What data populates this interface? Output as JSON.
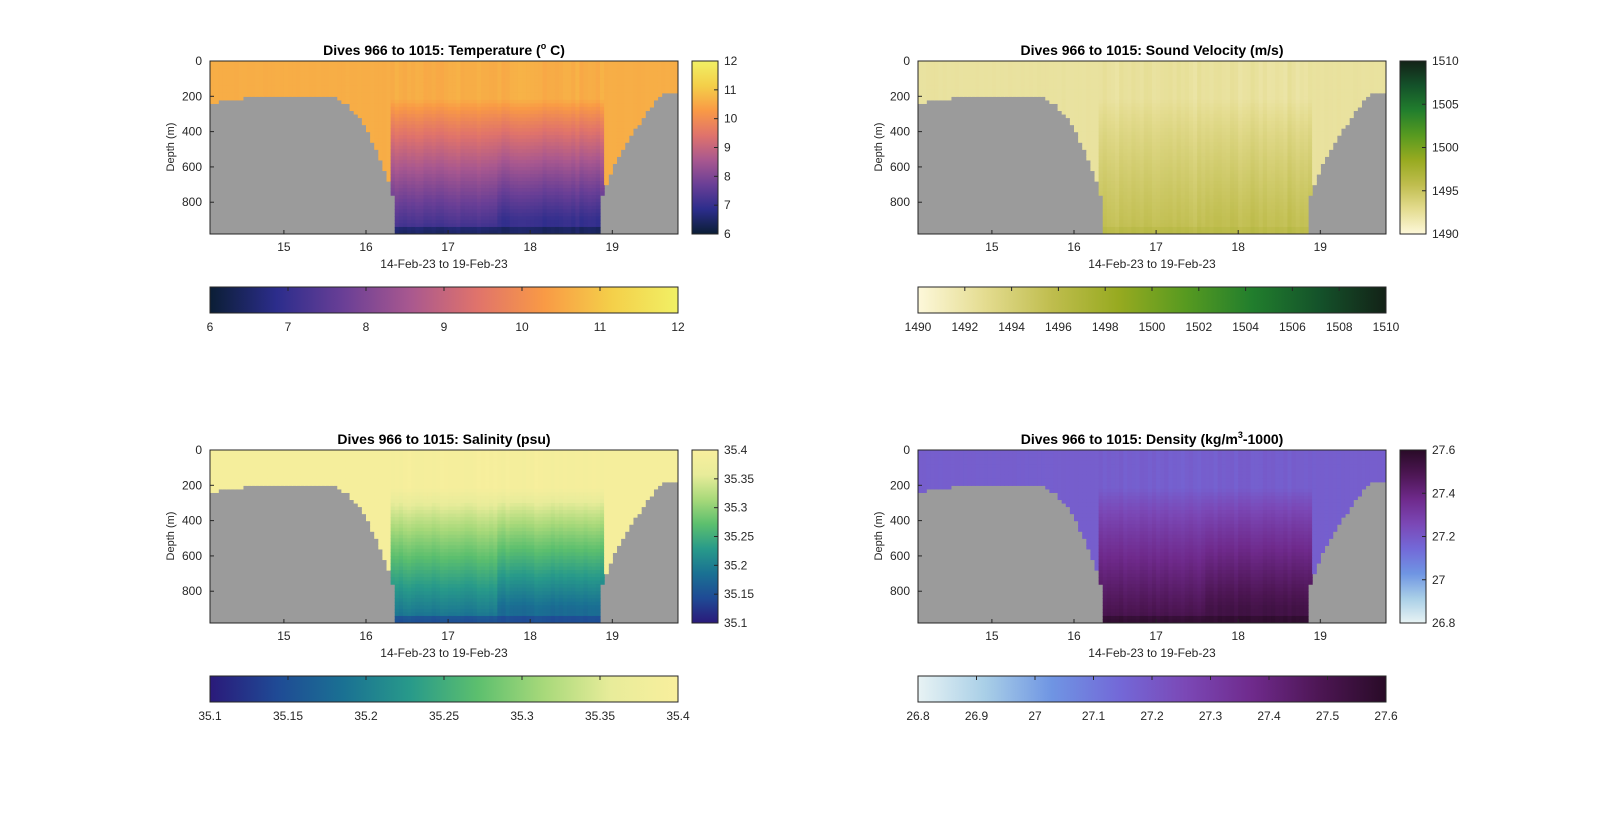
{
  "figure": {
    "xlabel_text": "14-Feb-23 to 19-Feb-23",
    "ylabel_text": "Depth (m)"
  },
  "colors": {
    "bathymetry": "#9b9b9b",
    "axis": "#262626"
  },
  "chart_data": [
    {
      "type": "heatmap",
      "id": "temperature",
      "title": "Dives 966 to 1015: Temperature (",
      "title_sup": "o",
      "title_tail": " C)",
      "xlabel": "14-Feb-23 to 19-Feb-23",
      "ylabel": "Depth (m)",
      "xlim": [
        14.1,
        19.8
      ],
      "ylim": [
        0,
        980
      ],
      "x_ticks": [
        15,
        16,
        17,
        18,
        19
      ],
      "y_ticks": [
        0,
        200,
        400,
        600,
        800
      ],
      "x_tick_labels": [
        "15",
        "16",
        "17",
        "18",
        "19"
      ],
      "y_tick_labels": [
        "0",
        "200",
        "400",
        "600",
        "800"
      ],
      "clim": [
        6,
        12
      ],
      "side_colorbar_ticks": [
        "6",
        "7",
        "8",
        "9",
        "10",
        "11",
        "12"
      ],
      "bottom_colorbar_ticks": [
        "6",
        "7",
        "8",
        "9",
        "10",
        "11",
        "12"
      ],
      "colormap": [
        "#0b1e35",
        "#2c2d8c",
        "#6a3f96",
        "#a9588f",
        "#e0736b",
        "#f99a45",
        "#f4cf49",
        "#f1f065"
      ],
      "surface_value": 10.6,
      "deep_value": 7.0
    },
    {
      "type": "heatmap",
      "id": "sound_velocity",
      "title": "Dives 966 to 1015: Sound Velocity (m/s)",
      "title_sup": "",
      "title_tail": "",
      "xlabel": "14-Feb-23 to 19-Feb-23",
      "ylabel": "Depth (m)",
      "xlim": [
        14.1,
        19.8
      ],
      "ylim": [
        0,
        980
      ],
      "x_ticks": [
        15,
        16,
        17,
        18,
        19
      ],
      "y_ticks": [
        0,
        200,
        400,
        600,
        800
      ],
      "x_tick_labels": [
        "15",
        "16",
        "17",
        "18",
        "19"
      ],
      "y_tick_labels": [
        "0",
        "200",
        "400",
        "600",
        "800"
      ],
      "clim": [
        1490,
        1510
      ],
      "side_colorbar_ticks": [
        "1490",
        "1495",
        "1500",
        "1505",
        "1510"
      ],
      "bottom_colorbar_ticks": [
        "1490",
        "1492",
        "1494",
        "1496",
        "1498",
        "1500",
        "1502",
        "1504",
        "1506",
        "1508",
        "1510"
      ],
      "colormap": [
        "#fdf8da",
        "#e4dc90",
        "#bfbd4e",
        "#97aa20",
        "#579a20",
        "#217e2d",
        "#14522a",
        "#132217"
      ],
      "surface_value": 1492.3,
      "deep_value": 1495.5
    },
    {
      "type": "heatmap",
      "id": "salinity",
      "title": "Dives 966 to 1015: Salinity (psu)",
      "title_sup": "",
      "title_tail": "",
      "xlabel": "14-Feb-23 to 19-Feb-23",
      "ylabel": "Depth (m)",
      "xlim": [
        14.1,
        19.8
      ],
      "ylim": [
        0,
        980
      ],
      "x_ticks": [
        15,
        16,
        17,
        18,
        19
      ],
      "y_ticks": [
        0,
        200,
        400,
        600,
        800
      ],
      "x_tick_labels": [
        "15",
        "16",
        "17",
        "18",
        "19"
      ],
      "y_tick_labels": [
        "0",
        "200",
        "400",
        "600",
        "800"
      ],
      "clim": [
        35.1,
        35.4
      ],
      "side_colorbar_ticks": [
        "35.1",
        "35.15",
        "35.2",
        "35.25",
        "35.3",
        "35.35",
        "35.4"
      ],
      "bottom_colorbar_ticks": [
        "35.1",
        "35.15",
        "35.2",
        "35.25",
        "35.3",
        "35.35",
        "35.4"
      ],
      "colormap": [
        "#2a1a7a",
        "#1f4a95",
        "#1a7193",
        "#289a8a",
        "#5cbf6e",
        "#a8d97a",
        "#e8ec9a",
        "#f9ef9d"
      ],
      "surface_value": 35.39,
      "deep_value": 35.18
    },
    {
      "type": "heatmap",
      "id": "density",
      "title": "Dives 966 to 1015: Density (kg/m",
      "title_sup": "3",
      "title_tail": "-1000)",
      "xlabel": "14-Feb-23 to 19-Feb-23",
      "ylabel": "Depth (m)",
      "xlim": [
        14.1,
        19.8
      ],
      "ylim": [
        0,
        980
      ],
      "x_ticks": [
        15,
        16,
        17,
        18,
        19
      ],
      "y_ticks": [
        0,
        200,
        400,
        600,
        800
      ],
      "x_tick_labels": [
        "15",
        "16",
        "17",
        "18",
        "19"
      ],
      "y_tick_labels": [
        "0",
        "200",
        "400",
        "600",
        "800"
      ],
      "clim": [
        26.8,
        27.6
      ],
      "side_colorbar_ticks": [
        "26.8",
        "27",
        "27.2",
        "27.4",
        "27.6"
      ],
      "bottom_colorbar_ticks": [
        "26.8",
        "26.9",
        "27",
        "27.1",
        "27.2",
        "27.3",
        "27.4",
        "27.5",
        "27.6"
      ],
      "colormap": [
        "#e8f3f4",
        "#a9cfe7",
        "#6f95e3",
        "#7369d8",
        "#7b48b6",
        "#6f2a8c",
        "#4d1654",
        "#290b27"
      ],
      "surface_value": 27.18,
      "deep_value": 27.52
    }
  ]
}
